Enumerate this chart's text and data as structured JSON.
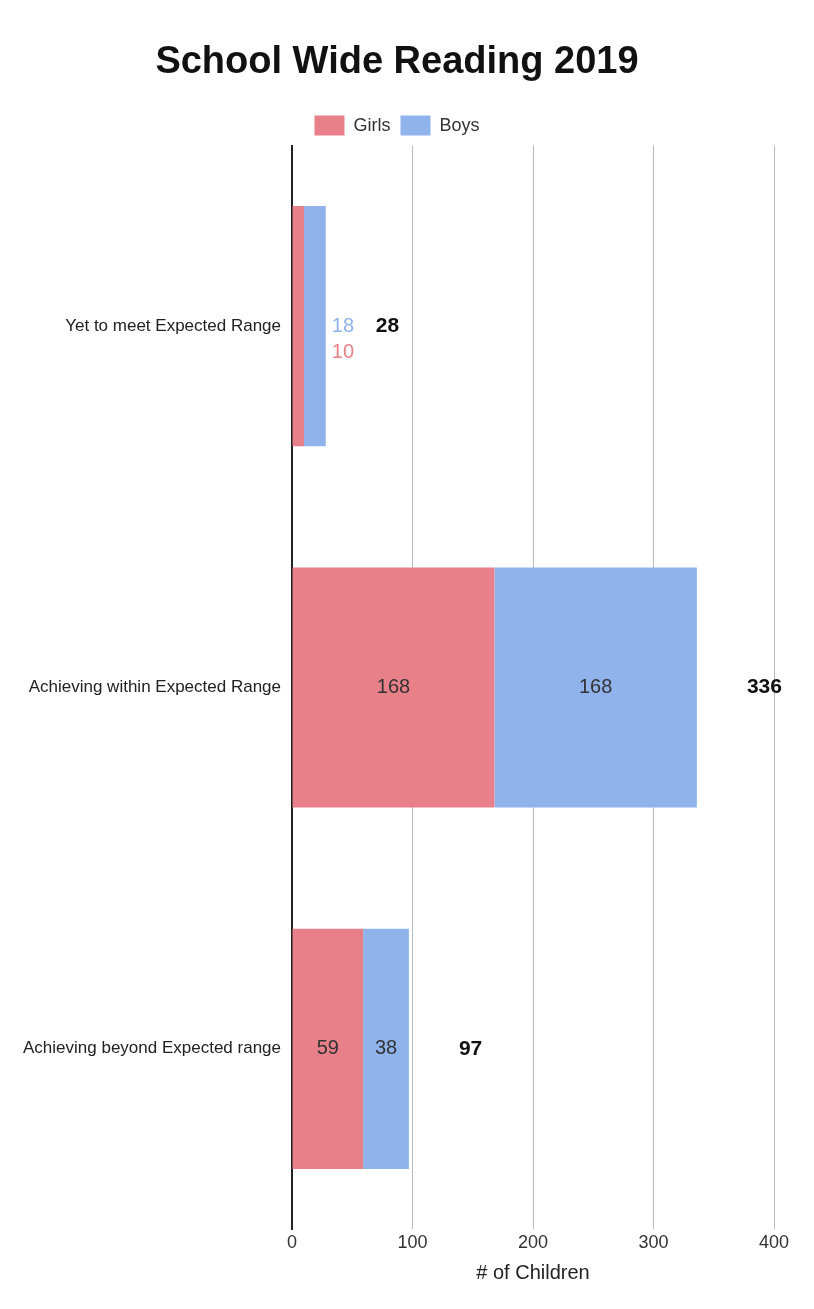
{
  "chart_data": {
    "type": "bar",
    "title": "School Wide Reading 2019",
    "xlabel": "# of Children",
    "categories": [
      "Yet to meet Expected Range",
      "Achieving within Expected Range",
      "Achieving beyond Expected range"
    ],
    "series": [
      {
        "name": "Girls",
        "color": "#e8808a",
        "values": [
          10,
          168,
          59
        ]
      },
      {
        "name": "Boys",
        "color": "#8fb3ea",
        "values": [
          18,
          168,
          38
        ]
      }
    ],
    "stacked": true,
    "orientation": "horizontal",
    "xlim": [
      0,
      400
    ],
    "xticks": [
      0,
      100,
      200,
      300,
      400
    ],
    "grid": "x",
    "legend": "top",
    "data_labels": true,
    "totals": [
      "28",
      "336",
      "97"
    ]
  }
}
